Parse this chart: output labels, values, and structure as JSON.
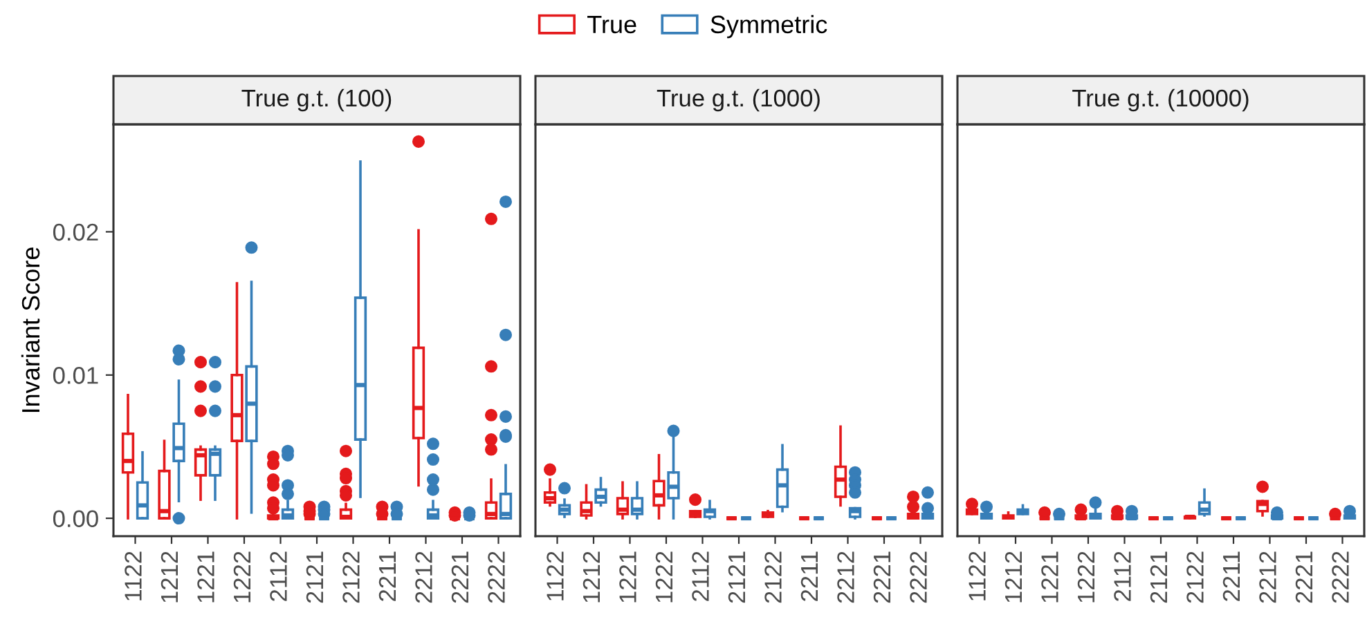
{
  "chart_data": [
    {
      "type": "box",
      "title": "True g.t. (100)",
      "ylabel": "Invariant Score",
      "legend": "top",
      "grid": false,
      "ylim": [
        -0.00125,
        0.0275
      ],
      "yticks": [
        {
          "value": 0,
          "label": "0.00"
        },
        {
          "value": 0.01,
          "label": "0.01"
        },
        {
          "value": 0.02,
          "label": "0.02"
        }
      ],
      "categories": [
        "1122",
        "1212",
        "1221",
        "1222",
        "2112",
        "2121",
        "2122",
        "2211",
        "2212",
        "2221",
        "2222"
      ],
      "series": [
        {
          "name": "True",
          "color": "#e41a1c",
          "boxes": [
            {
              "low": 0,
              "q1": 0.0032,
              "median": 0.004,
              "q3": 0.0059,
              "high": 0.0086
            },
            {
              "low": 0,
              "q1": 0,
              "median": 0.0005,
              "q3": 0.0033,
              "high": 0.0054
            },
            {
              "low": 0.0013,
              "q1": 0.003,
              "median": 0.0044,
              "q3": 0.0048,
              "high": 0.005,
              "outliers": [
                0.0075,
                0.0092,
                0.0109
              ]
            },
            {
              "low": 0,
              "q1": 0.0054,
              "median": 0.0072,
              "q3": 0.01,
              "high": 0.0164
            },
            {
              "low": 0,
              "q1": 0,
              "median": 0,
              "q3": 0.0002,
              "high": 0.0004,
              "outliers": [
                0.0043,
                0.0038,
                0.0027,
                0.0023,
                0.0011,
                0.0007
              ]
            },
            {
              "low": 0,
              "q1": 0,
              "median": 0,
              "q3": 0,
              "high": 0,
              "outliers": [
                0.0008,
                0.0005,
                0.0003
              ]
            },
            {
              "low": 0,
              "q1": 0,
              "median": 0.0001,
              "q3": 0.0006,
              "high": 0.001,
              "outliers": [
                0.0047,
                0.0031,
                0.0028,
                0.0019,
                0.0016
              ]
            },
            {
              "low": 0,
              "q1": 0,
              "median": 0,
              "q3": 0,
              "high": 0,
              "outliers": [
                0.0008,
                0.0003
              ]
            },
            {
              "low": 0.0023,
              "q1": 0.0056,
              "median": 0.0077,
              "q3": 0.0119,
              "high": 0.0201,
              "outliers": [
                0.0263
              ]
            },
            {
              "low": 0,
              "q1": 0,
              "median": 0,
              "q3": 0,
              "high": 0,
              "outliers": [
                0.0004,
                0.0002
              ]
            },
            {
              "low": 0,
              "q1": 0,
              "median": 0.0003,
              "q3": 0.0011,
              "high": 0.0027,
              "outliers": [
                0.0209,
                0.0106,
                0.0072,
                0.0055,
                0.0048
              ]
            }
          ]
        },
        {
          "name": "Symmetric",
          "color": "#377eb8",
          "boxes": [
            {
              "low": 0,
              "q1": 0,
              "median": 0.0009,
              "q3": 0.0025,
              "high": 0.0046
            },
            {
              "low": 0.0012,
              "q1": 0.004,
              "median": 0.0049,
              "q3": 0.0066,
              "high": 0.0096,
              "outliers": [
                0,
                0.0111,
                0.0117
              ]
            },
            {
              "low": 0.0013,
              "q1": 0.003,
              "median": 0.0045,
              "q3": 0.0048,
              "high": 0.005,
              "outliers": [
                0.0075,
                0.0092,
                0.0109
              ]
            },
            {
              "low": 0.0004,
              "q1": 0.0054,
              "median": 0.008,
              "q3": 0.0106,
              "high": 0.0165,
              "outliers": [
                0.0189
              ]
            },
            {
              "low": 0,
              "q1": 0,
              "median": 0.0002,
              "q3": 0.0006,
              "high": 0.0012,
              "outliers": [
                0.0047,
                0.0044,
                0.0023,
                0.0017
              ]
            },
            {
              "low": 0,
              "q1": 0,
              "median": 0,
              "q3": 0,
              "high": 0,
              "outliers": [
                0.0008,
                0.0006,
                0.0003
              ]
            },
            {
              "low": 0.0015,
              "q1": 0.0055,
              "median": 0.0093,
              "q3": 0.0154,
              "high": 0.0249
            },
            {
              "low": 0,
              "q1": 0,
              "median": 0,
              "q3": 0,
              "high": 0,
              "outliers": [
                0.0008,
                0.0003
              ]
            },
            {
              "low": 0,
              "q1": 0,
              "median": 0.0002,
              "q3": 0.0006,
              "high": 0.0012,
              "outliers": [
                0.0052,
                0.0041,
                0.0027,
                0.002
              ]
            },
            {
              "low": 0,
              "q1": 0,
              "median": 0,
              "q3": 0,
              "high": 0,
              "outliers": [
                0.0004,
                0.0002
              ]
            },
            {
              "low": 0,
              "q1": 0,
              "median": 0.0003,
              "q3": 0.0017,
              "high": 0.0037,
              "outliers": [
                0.0221,
                0.0128,
                0.0071,
                0.0058,
                0.0057
              ]
            }
          ]
        }
      ]
    },
    {
      "type": "box",
      "title": "True g.t. (1000)",
      "grid": false,
      "tick_labels": "x",
      "ylim": [
        -0.00125,
        0.0275
      ],
      "categories": [
        "1122",
        "1212",
        "1221",
        "1222",
        "2112",
        "2121",
        "2122",
        "2211",
        "2212",
        "2221",
        "2222"
      ],
      "series": [
        {
          "color": "#e41a1c",
          "boxes": [
            {
              "low": 0.0009,
              "q1": 0.0011,
              "median": 0.0014,
              "q3": 0.0018,
              "high": 0.0027,
              "outliers": [
                0.0034
              ]
            },
            {
              "low": 0,
              "q1": 0.0002,
              "median": 0.0005,
              "q3": 0.0011,
              "high": 0.0023
            },
            {
              "low": 0,
              "q1": 0.0003,
              "median": 0.0006,
              "q3": 0.0014,
              "high": 0.0025
            },
            {
              "low": 0,
              "q1": 0.0009,
              "median": 0.0016,
              "q3": 0.0026,
              "high": 0.0044
            },
            {
              "low": 0.0001,
              "q1": 0.0001,
              "median": 0.0003,
              "q3": 0.0005,
              "high": 0.0005,
              "outliers": [
                0.0013
              ]
            },
            {
              "low": 0,
              "q1": 0,
              "median": 0,
              "q3": 0,
              "high": 0
            },
            {
              "low": 0.0001,
              "q1": 0.0001,
              "median": 0.0002,
              "q3": 0.0004,
              "high": 0.0005
            },
            {
              "low": 0,
              "q1": 0,
              "median": 0,
              "q3": 0,
              "high": 0
            },
            {
              "low": 0.0009,
              "q1": 0.0015,
              "median": 0.0027,
              "q3": 0.0036,
              "high": 0.0064
            },
            {
              "low": 0,
              "q1": 0,
              "median": 0,
              "q3": 0,
              "high": 0
            },
            {
              "low": 0,
              "q1": 0,
              "median": 0.0001,
              "q3": 0.0003,
              "high": 0.0003,
              "outliers": [
                0.0015,
                0.0008
              ]
            }
          ]
        },
        {
          "color": "#377eb8",
          "boxes": [
            {
              "low": 0.0001,
              "q1": 0.0003,
              "median": 0.0006,
              "q3": 0.0009,
              "high": 0.0013,
              "outliers": [
                0.0021
              ]
            },
            {
              "low": 0.0009,
              "q1": 0.0011,
              "median": 0.0015,
              "q3": 0.002,
              "high": 0.0028
            },
            {
              "low": 0,
              "q1": 0.0003,
              "median": 0.0006,
              "q3": 0.0014,
              "high": 0.0025
            },
            {
              "low": 0,
              "q1": 0.0014,
              "median": 0.0022,
              "q3": 0.0032,
              "high": 0.0058,
              "outliers": [
                0.0061
              ]
            },
            {
              "low": 0,
              "q1": 0.0001,
              "median": 0.0005,
              "q3": 0.0006,
              "high": 0.0012
            },
            {
              "low": 0,
              "q1": 0,
              "median": 0,
              "q3": 0,
              "high": 0
            },
            {
              "low": 0.0005,
              "q1": 0.0008,
              "median": 0.0023,
              "q3": 0.0034,
              "high": 0.0051
            },
            {
              "low": 0,
              "q1": 0,
              "median": 0,
              "q3": 0,
              "high": 0
            },
            {
              "low": 0,
              "q1": 0.0001,
              "median": 0.0005,
              "q3": 0.0007,
              "high": 0.0007,
              "outliers": [
                0.0032,
                0.0027,
                0.0023,
                0.0018
              ]
            },
            {
              "low": 0,
              "q1": 0,
              "median": 0,
              "q3": 0,
              "high": 0
            },
            {
              "low": 0,
              "q1": 0,
              "median": 0.0001,
              "q3": 0.0003,
              "high": 0.0003,
              "outliers": [
                0.0018,
                0.0007
              ]
            }
          ]
        }
      ]
    },
    {
      "type": "box",
      "title": "True g.t. (10000)",
      "grid": false,
      "tick_labels": "x",
      "ylim": [
        -0.00125,
        0.0275
      ],
      "categories": [
        "1122",
        "1212",
        "1221",
        "1222",
        "2112",
        "2121",
        "2122",
        "2211",
        "2212",
        "2221",
        "2222"
      ],
      "series": [
        {
          "color": "#e41a1c",
          "boxes": [
            {
              "low": 0.0003,
              "q1": 0.0003,
              "median": 0.0005,
              "q3": 0.0006,
              "high": 0.0006,
              "outliers": [
                0.001
              ]
            },
            {
              "low": 0,
              "q1": 0,
              "median": 0.0001,
              "q3": 0.0002,
              "high": 0.0004
            },
            {
              "low": 0,
              "q1": 0,
              "median": 0,
              "q3": 0,
              "high": 0,
              "outliers": [
                0.0004
              ]
            },
            {
              "low": 0,
              "q1": 0,
              "median": 0,
              "q3": 0.0002,
              "high": 0.0002,
              "outliers": [
                0.0006
              ]
            },
            {
              "low": 0,
              "q1": 0,
              "median": 0,
              "q3": 0.0002,
              "high": 0.0002,
              "outliers": [
                0.0005
              ]
            },
            {
              "low": 0,
              "q1": 0,
              "median": 0,
              "q3": 0,
              "high": 0
            },
            {
              "low": 0,
              "q1": 0,
              "median": 0.0001,
              "q3": 0.0001,
              "high": 0.0001
            },
            {
              "low": 0,
              "q1": 0,
              "median": 0,
              "q3": 0,
              "high": 0
            },
            {
              "low": 0.0002,
              "q1": 0.0005,
              "median": 0.001,
              "q3": 0.0012,
              "high": 0.0012,
              "outliers": [
                0.0022
              ]
            },
            {
              "low": 0,
              "q1": 0,
              "median": 0,
              "q3": 0,
              "high": 0
            },
            {
              "low": 0,
              "q1": 0,
              "median": 0,
              "q3": 0,
              "high": 0,
              "outliers": [
                0.0003
              ]
            }
          ]
        },
        {
          "color": "#377eb8",
          "boxes": [
            {
              "low": 0,
              "q1": 0,
              "median": 0.0001,
              "q3": 0.0003,
              "high": 0.0003,
              "outliers": [
                0.0008
              ]
            },
            {
              "low": 0.0003,
              "q1": 0.0003,
              "median": 0.0005,
              "q3": 0.0006,
              "high": 0.0009
            },
            {
              "low": 0,
              "q1": 0,
              "median": 0,
              "q3": 0,
              "high": 0,
              "outliers": [
                0.0003
              ]
            },
            {
              "low": 0,
              "q1": 0,
              "median": 0.0001,
              "q3": 0.0003,
              "high": 0.0006,
              "outliers": [
                0.0011
              ]
            },
            {
              "low": 0,
              "q1": 0,
              "median": 0,
              "q3": 0.0002,
              "high": 0.0002,
              "outliers": [
                0.0005
              ]
            },
            {
              "low": 0,
              "q1": 0,
              "median": 0,
              "q3": 0,
              "high": 0
            },
            {
              "low": 0.0002,
              "q1": 0.0003,
              "median": 0.0006,
              "q3": 0.0011,
              "high": 0.002
            },
            {
              "low": 0,
              "q1": 0,
              "median": 0,
              "q3": 0,
              "high": 0
            },
            {
              "low": 0,
              "q1": 0,
              "median": 0,
              "q3": 0.0002,
              "high": 0.0002,
              "outliers": [
                0.0004
              ]
            },
            {
              "low": 0,
              "q1": 0,
              "median": 0,
              "q3": 0,
              "high": 0
            },
            {
              "low": 0,
              "q1": 0,
              "median": 0.0001,
              "q3": 0.0002,
              "high": 0.0002,
              "outliers": [
                0.0005
              ]
            }
          ]
        }
      ]
    }
  ]
}
